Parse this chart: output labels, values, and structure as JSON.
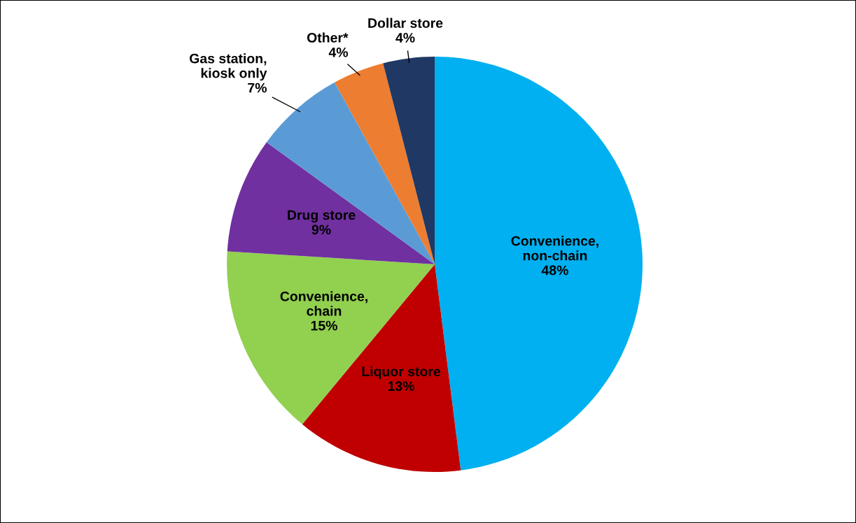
{
  "chart_data": {
    "type": "pie",
    "categories": [
      "Convenience,\nnon-chain",
      "Liquor store",
      "Convenience,\nchain",
      "Drug store",
      "Gas station,\nkiosk only",
      "Other*",
      "Dollar store"
    ],
    "values": [
      48,
      13,
      15,
      9,
      7,
      4,
      4
    ],
    "value_labels": [
      "48%",
      "13%",
      "15%",
      "9%",
      "7%",
      "4%",
      "4%"
    ],
    "colors": [
      "#00b0f0",
      "#c00000",
      "#92d050",
      "#7030a0",
      "#5b9bd5",
      "#ed7d31",
      "#203864"
    ],
    "legend": false
  }
}
